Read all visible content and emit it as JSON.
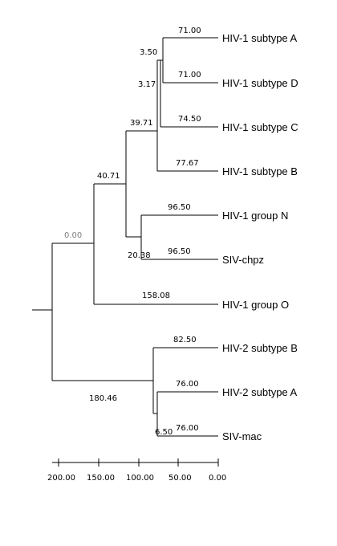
{
  "leaves": [
    "HIV-1 subtype A",
    "HIV-1 subtype D",
    "HIV-1 subtype C",
    "HIV-1 subtype B",
    "HIV-1 group N",
    "SIV-chpz",
    "HIV-1 group O",
    "HIV-2 subtype B",
    "HIV-2 subtype A",
    "SIV-mac"
  ],
  "tree": {
    "height": 0.0,
    "label": "0.00",
    "children": [
      {
        "height": 40.71,
        "label": "40.71",
        "children": [
          {
            "height": 39.71,
            "label": "39.71",
            "children": [
              {
                "height": 3.17,
                "label": "3.17",
                "children": [
                  {
                    "height": 3.5,
                    "label": "3.50",
                    "children": [
                      {
                        "leaf": 0,
                        "branch": "71.00"
                      },
                      {
                        "leaf": 1,
                        "branch": "71.00"
                      }
                    ]
                  },
                  {
                    "leaf": 2,
                    "branch": "74.50"
                  }
                ]
              },
              {
                "leaf": 3,
                "branch": "77.67"
              }
            ]
          },
          {
            "height": 20.38,
            "label": "20.38",
            "children": [
              {
                "leaf": 4,
                "branch": "96.50"
              },
              {
                "leaf": 5,
                "branch": "96.50"
              }
            ]
          }
        ]
      },
      {
        "leaf": 6,
        "branch": "158.08"
      },
      {
        "height": 180.46,
        "label": "180.46",
        "children": [
          {
            "leaf": 7,
            "branch": "82.50"
          },
          {
            "height": 6.5,
            "label": "6.50",
            "children": [
              {
                "leaf": 8,
                "branch": "76.00"
              },
              {
                "leaf": 9,
                "branch": "76.00"
              }
            ]
          }
        ]
      }
    ]
  },
  "scale": {
    "ticks": [
      "200.00",
      "150.00",
      "100.00",
      "50.00",
      "0.00"
    ]
  }
}
